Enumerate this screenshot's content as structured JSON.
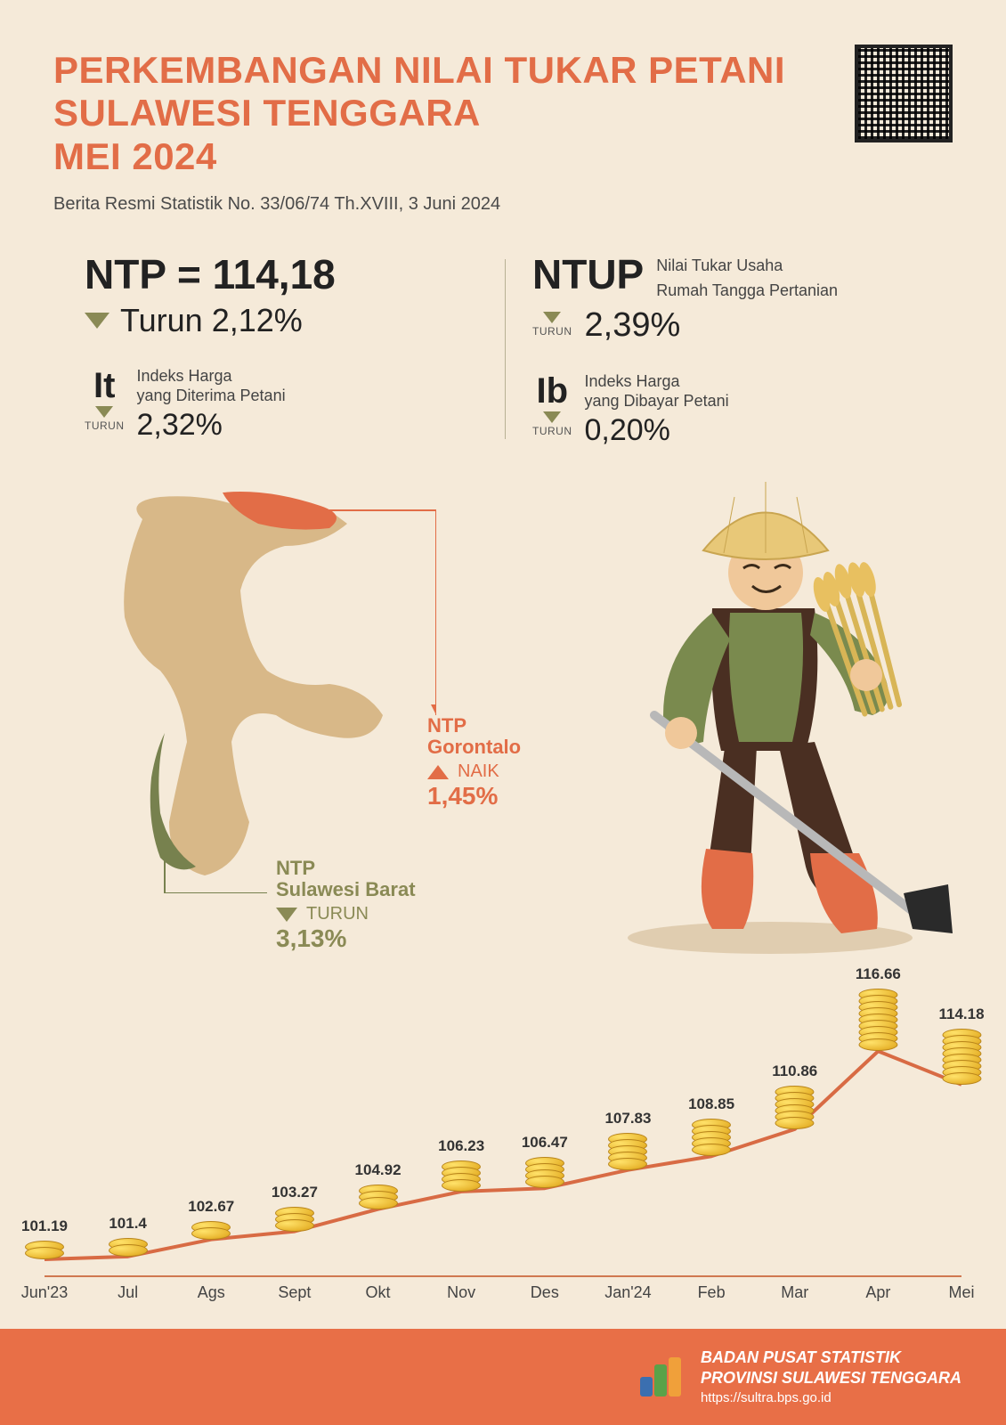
{
  "colors": {
    "bg": "#f5ead9",
    "accent": "#e26d47",
    "olive": "#8a8a55",
    "text_dark": "#222222",
    "text_mid": "#4a4a4a",
    "footer_bg": "#e86f47",
    "map_tan": "#d8b888",
    "map_highlight": "#e26d47",
    "map_olive": "#77814e",
    "line_color": "#d86b44",
    "coin_gold": "#e8b52e"
  },
  "header": {
    "title_l1": "PERKEMBANGAN NILAI TUKAR PETANI",
    "title_l2": "SULAWESI TENGGARA",
    "title_l3": "MEI 2024",
    "title_color": "#e26d47",
    "subtitle": "Berita Resmi Statistik No. 33/06/74 Th.XVIII, 3 Juni 2024"
  },
  "stats": {
    "ntp": {
      "formula": "NTP = 114,18",
      "direction": "down",
      "change_label": "Turun 2,12%"
    },
    "it": {
      "abbr": "It",
      "desc_l1": "Indeks Harga",
      "desc_l2": "yang Diterima Petani",
      "turun": "TURUN",
      "value": "2,32%"
    },
    "ntup": {
      "abbr": "NTUP",
      "desc_l1": "Nilai Tukar Usaha",
      "desc_l2": "Rumah Tangga Pertanian",
      "turun": "TURUN",
      "value": "2,39%"
    },
    "ib": {
      "abbr": "Ib",
      "desc_l1": "Indeks Harga",
      "desc_l2": "yang Dibayar Petani",
      "turun": "TURUN",
      "value": "0,20%"
    }
  },
  "callouts": {
    "gorontalo": {
      "title_l1": "NTP",
      "title_l2": "Gorontalo",
      "label": "NAIK",
      "value": "1,45%",
      "color": "#e26d47",
      "direction": "up"
    },
    "sulbar": {
      "title_l1": "NTP",
      "title_l2": "Sulawesi Barat",
      "label": "TURUN",
      "value": "3,13%",
      "color": "#8a8a55",
      "direction": "down"
    }
  },
  "chart": {
    "type": "line",
    "ylim": [
      100,
      118
    ],
    "line_color": "#d86b44",
    "line_width": 4,
    "marker": "coin-stack",
    "axis_color": "#d07850",
    "label_fontsize": 17,
    "month_fontsize": 18,
    "points": [
      {
        "month": "Jun'23",
        "value": 101.19,
        "label": "101.19"
      },
      {
        "month": "Jul",
        "value": 101.4,
        "label": "101.4"
      },
      {
        "month": "Ags",
        "value": 102.67,
        "label": "102.67"
      },
      {
        "month": "Sept",
        "value": 103.27,
        "label": "103.27"
      },
      {
        "month": "Okt",
        "value": 104.92,
        "label": "104.92"
      },
      {
        "month": "Nov",
        "value": 106.23,
        "label": "106.23"
      },
      {
        "month": "Des",
        "value": 106.47,
        "label": "106.47"
      },
      {
        "month": "Jan'24",
        "value": 107.83,
        "label": "107.83"
      },
      {
        "month": "Feb",
        "value": 108.85,
        "label": "108.85"
      },
      {
        "month": "Mar",
        "value": 110.86,
        "label": "110.86"
      },
      {
        "month": "Apr",
        "value": 116.66,
        "label": "116.66"
      },
      {
        "month": "Mei",
        "value": 114.18,
        "label": "114.18"
      }
    ]
  },
  "footer": {
    "line1": "BADAN PUSAT STATISTIK",
    "line2": "PROVINSI SULAWESI TENGGARA",
    "line3": "https://sultra.bps.go.id"
  }
}
